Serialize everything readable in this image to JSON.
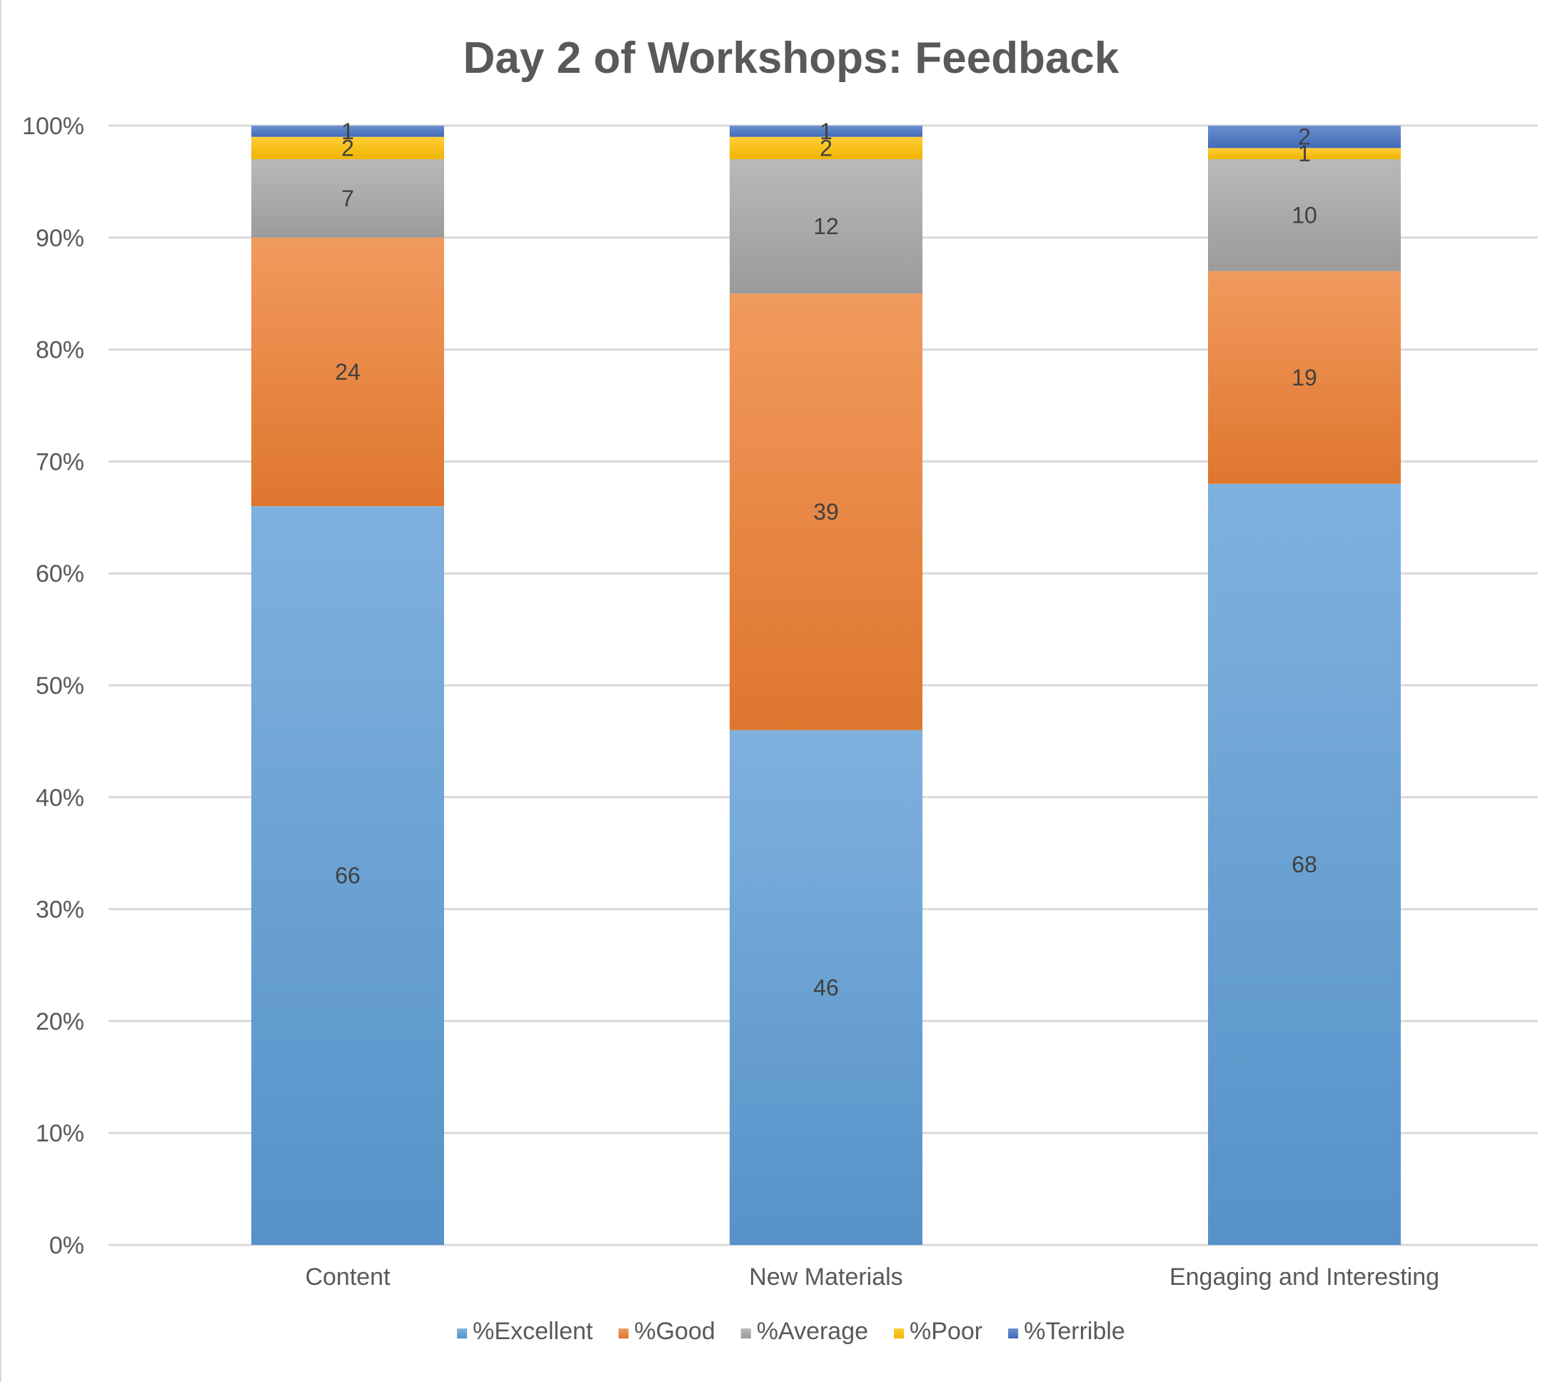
{
  "chart_data": {
    "type": "bar",
    "stacked": true,
    "percent_stacked": true,
    "title": "Day 2 of Workshops: Feedback",
    "xlabel": "",
    "ylabel": "",
    "ylim": [
      0,
      100
    ],
    "y_ticks": [
      "0%",
      "10%",
      "20%",
      "30%",
      "40%",
      "50%",
      "60%",
      "70%",
      "80%",
      "90%",
      "100%"
    ],
    "grid": true,
    "legend_position": "bottom",
    "categories": [
      "Content",
      "New Materials",
      "Engaging and Interesting"
    ],
    "series": [
      {
        "name": "%Excellent",
        "values": [
          66,
          46,
          68
        ],
        "color": "#5B9BD5"
      },
      {
        "name": "%Good",
        "values": [
          24,
          39,
          19
        ],
        "color": "#ED7D31"
      },
      {
        "name": "%Average",
        "values": [
          7,
          12,
          10
        ],
        "color": "#A5A5A5"
      },
      {
        "name": "%Poor",
        "values": [
          2,
          2,
          1
        ],
        "color": "#FFC000"
      },
      {
        "name": "%Terrible",
        "values": [
          1,
          1,
          2
        ],
        "color": "#4472C4"
      }
    ]
  }
}
